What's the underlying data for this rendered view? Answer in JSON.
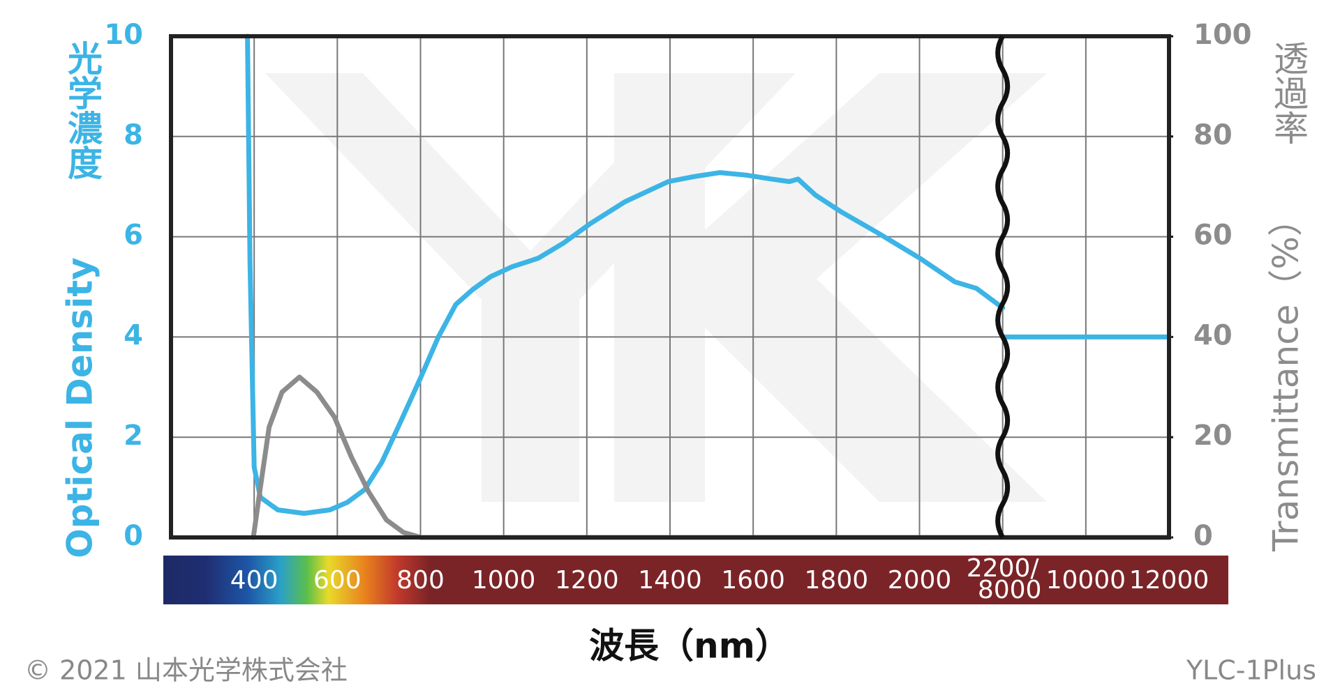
{
  "chart_data": {
    "type": "line",
    "xlabel": "波長（nm）",
    "ylabel": "Optical Density",
    "ylabel_ja": "光学濃度",
    "y2label": "Transmittance（%）",
    "y2label_ja": "透過率",
    "xlim": [
      200,
      2200
    ],
    "xticks": [
      400,
      600,
      800,
      1000,
      1200,
      1400,
      1600,
      1800,
      2000,
      {
        "value": 2200,
        "label": "2200/"
      }
    ],
    "x2lim": [
      8000,
      12000
    ],
    "x2ticks": [
      8000,
      10000,
      12000
    ],
    "ylim": [
      0,
      10
    ],
    "yticks": [
      0,
      2,
      4,
      6,
      8,
      10
    ],
    "y2lim": [
      0,
      100
    ],
    "y2ticks": [
      0,
      20,
      40,
      60,
      80,
      100
    ],
    "grid": true,
    "series": [
      {
        "color": "#3cb4e5",
        "axis": "y",
        "x": [
          384,
          390,
          400,
          415,
          457,
          520,
          582,
          624,
          665,
          707,
          749,
          801,
          843,
          885,
          926,
          968,
          1020,
          1083,
          1145,
          1208,
          1292,
          1396,
          1458,
          1520,
          1583,
          1645,
          1687,
          1708,
          1750,
          1813,
          1897,
          2001,
          2085,
          2137,
          2200
        ],
        "values": [
          10,
          5.5,
          1.4,
          0.8,
          0.55,
          0.48,
          0.55,
          0.7,
          0.95,
          1.5,
          2.25,
          3.2,
          4.0,
          4.65,
          4.95,
          5.2,
          5.4,
          5.57,
          5.88,
          6.26,
          6.7,
          7.1,
          7.2,
          7.28,
          7.23,
          7.15,
          7.1,
          7.15,
          6.83,
          6.49,
          6.09,
          5.57,
          5.1,
          4.97,
          4.58
        ]
      },
      {
        "color": "#3cb4e5",
        "axis": "y",
        "xaxis": "x2",
        "x": [
          8000,
          12000
        ],
        "values": [
          4,
          4
        ]
      },
      {
        "color": "#8c8c8c",
        "axis": "y2",
        "x": [
          398,
          415,
          436,
          467,
          509,
          551,
          593,
          634,
          676,
          718,
          759,
          801,
          2200
        ],
        "values": [
          0,
          10,
          22,
          29,
          32,
          29,
          24,
          16,
          9,
          3.5,
          1,
          0,
          0
        ]
      },
      {
        "color": "#8c8c8c",
        "axis": "y2",
        "xaxis": "x2",
        "x": [
          8000,
          12000
        ],
        "values": [
          0,
          0
        ]
      }
    ],
    "copyright": "© 2021 山本光学株式会社",
    "model": "YLC-1Plus"
  }
}
